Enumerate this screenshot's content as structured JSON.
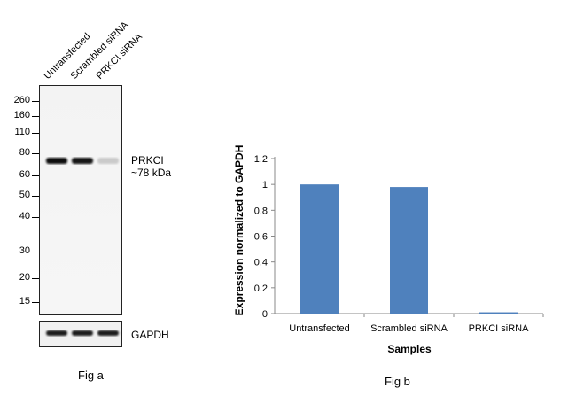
{
  "fig_a": {
    "caption": "Fig a",
    "lanes": [
      "Untransfected",
      "Scrambled siRNA",
      "PRKCI siRNA"
    ],
    "markers": [
      "260",
      "160",
      "110",
      "80",
      "60",
      "50",
      "40",
      "30",
      "20",
      "15"
    ],
    "band_label": "PRKCI",
    "band_size": "~78 kDa",
    "loading_control": "GAPDH",
    "band_intensity": [
      1.0,
      0.98,
      0.15
    ]
  },
  "fig_b": {
    "caption": "Fig b"
  },
  "chart_data": {
    "type": "bar",
    "categories": [
      "Untransfected",
      "Scrambled siRNA",
      "PRKCI siRNA"
    ],
    "values": [
      1.0,
      0.98,
      0.01
    ],
    "title": "",
    "xlabel": "Samples",
    "ylabel": "Expression  normalized to GAPDH",
    "ylim": [
      0,
      1.2
    ],
    "yticks": [
      "0",
      "0.2",
      "0.4",
      "0.6",
      "0.8",
      "1",
      "1.2"
    ],
    "bar_color": "#4f81bd",
    "grid": false
  }
}
